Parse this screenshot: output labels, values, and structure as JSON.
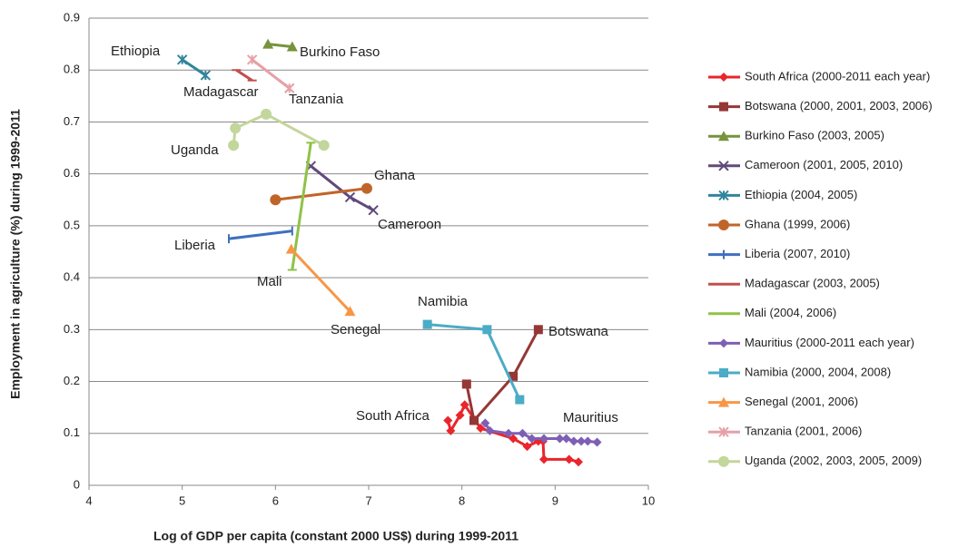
{
  "chart_data": {
    "type": "line",
    "xlabel": "Log of GDP per capita (constant 2000  US$) during 1999-2011",
    "ylabel": "Employment in agriculture (%) during 1999-2011",
    "xlim": [
      4,
      10
    ],
    "xticks": [
      4,
      5,
      6,
      7,
      8,
      9,
      10
    ],
    "ylim": [
      0,
      0.9
    ],
    "yticks": [
      0,
      0.1,
      0.2,
      0.3,
      0.4,
      0.5,
      0.6,
      0.7,
      0.8,
      0.9
    ],
    "grid": true,
    "legend": "right",
    "series": [
      {
        "name": "South Africa (2000-2011 each year)",
        "color": "#e8262b",
        "marker": "diamond",
        "x": [
          7.85,
          7.88,
          7.98,
          8.03,
          8.2,
          8.55,
          8.7,
          8.82,
          8.87,
          8.88,
          9.15,
          9.25
        ],
        "values": [
          0.125,
          0.105,
          0.135,
          0.155,
          0.11,
          0.09,
          0.075,
          0.085,
          0.085,
          0.05,
          0.05,
          0.045
        ]
      },
      {
        "name": "Botswana (2000, 2001, 2003, 2006)",
        "color": "#953735",
        "marker": "square",
        "x": [
          8.05,
          8.13,
          8.55,
          8.82
        ],
        "values": [
          0.195,
          0.125,
          0.21,
          0.3
        ]
      },
      {
        "name": "Burkino Faso (2003, 2005)",
        "color": "#77933c",
        "marker": "triangle",
        "x": [
          5.92,
          6.18
        ],
        "values": [
          0.85,
          0.845
        ]
      },
      {
        "name": "Cameroon (2001, 2005, 2010)",
        "color": "#604a7b",
        "marker": "x",
        "x": [
          6.38,
          6.8,
          7.05
        ],
        "values": [
          0.615,
          0.555,
          0.53
        ]
      },
      {
        "name": "Ethiopia (2004, 2005)",
        "color": "#31859c",
        "marker": "star",
        "x": [
          5.0,
          5.25
        ],
        "values": [
          0.82,
          0.79
        ]
      },
      {
        "name": "Ghana (1999, 2006)",
        "color": "#c0652a",
        "marker": "circle",
        "x": [
          6.0,
          6.98
        ],
        "values": [
          0.55,
          0.572
        ]
      },
      {
        "name": "Liberia (2007, 2010)",
        "color": "#3f6fbf",
        "marker": "plus",
        "x": [
          5.5,
          6.18
        ],
        "values": [
          0.475,
          0.49
        ]
      },
      {
        "name": "Madagascar (2003, 2005)",
        "color": "#c0504d",
        "marker": "dash",
        "x": [
          5.58,
          5.75
        ],
        "values": [
          0.8,
          0.78
        ]
      },
      {
        "name": "Mali (2004, 2006)",
        "color": "#8fc246",
        "marker": "dash",
        "x": [
          6.38,
          6.18
        ],
        "values": [
          0.66,
          0.415
        ]
      },
      {
        "name": "Mauritius (2000-2011 each year)",
        "color": "#7e5fb5",
        "marker": "diamond",
        "x": [
          8.25,
          8.3,
          8.5,
          8.65,
          8.75,
          8.88,
          9.05,
          9.12,
          9.2,
          9.28,
          9.35,
          9.45
        ],
        "values": [
          0.12,
          0.105,
          0.1,
          0.1,
          0.09,
          0.09,
          0.09,
          0.09,
          0.085,
          0.085,
          0.085,
          0.083
        ]
      },
      {
        "name": "Namibia (2000, 2004, 2008)",
        "color": "#4bacc6",
        "marker": "square",
        "x": [
          7.63,
          8.27,
          8.62
        ],
        "values": [
          0.31,
          0.3,
          0.165
        ]
      },
      {
        "name": "Senegal (2001, 2006)",
        "color": "#f79646",
        "marker": "triangle",
        "x": [
          6.17,
          6.8
        ],
        "values": [
          0.455,
          0.335
        ]
      },
      {
        "name": "Tanzania (2001, 2006)",
        "color": "#e6a0a6",
        "marker": "star",
        "x": [
          5.75,
          6.15
        ],
        "values": [
          0.82,
          0.765
        ]
      },
      {
        "name": "Uganda (2002, 2003, 2005, 2009)",
        "color": "#c3d69b",
        "marker": "circle",
        "x": [
          5.55,
          5.57,
          5.9,
          6.52
        ],
        "values": [
          0.655,
          0.688,
          0.715,
          0.655
        ]
      }
    ],
    "annotations": [
      "Ethiopia",
      "Burkino Faso",
      "Madagascar",
      "Tanzania",
      "Uganda",
      "Ghana",
      "Cameroon",
      "Liberia",
      "Mali",
      "Namibia",
      "Senegal",
      "Botswana",
      "South Africa",
      "Mauritius"
    ]
  }
}
